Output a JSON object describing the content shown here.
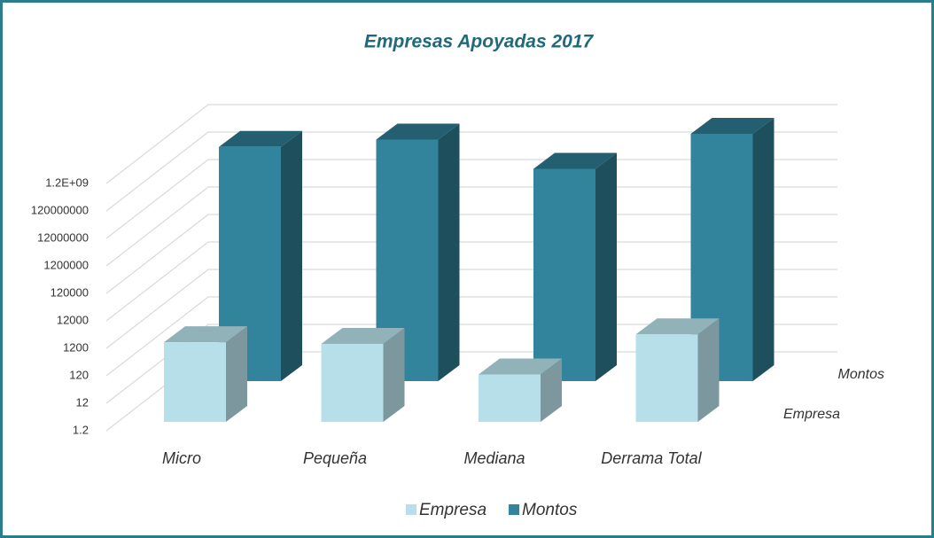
{
  "chart_data": {
    "type": "bar3d",
    "title": "Empresas Apoyadas 2017",
    "categories": [
      "Micro",
      "Pequeña",
      "Mediana",
      "Derrama Total"
    ],
    "series": [
      {
        "name": "Empresa",
        "color": "#b7dfe9",
        "values": [
          950,
          830,
          64,
          1844
        ]
      },
      {
        "name": "Montos",
        "color": "#31849b",
        "values": [
          400000000,
          740000000,
          64000000,
          1204000000
        ]
      }
    ],
    "ylog": true,
    "ylim": [
      1.2,
      1200000000
    ],
    "yticks": [
      1.2,
      12,
      120,
      1200,
      12000,
      120000,
      1200000,
      12000000,
      120000000,
      {
        "value": 1200000000,
        "label": "1.2E+09"
      }
    ],
    "grid": true,
    "legend": "bottom"
  }
}
